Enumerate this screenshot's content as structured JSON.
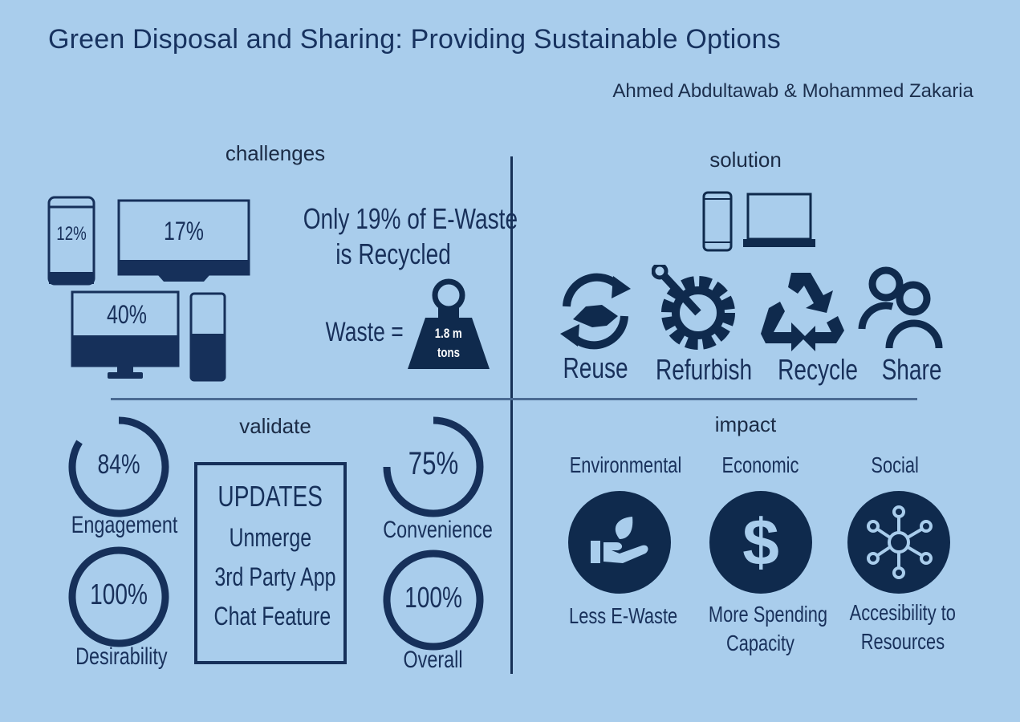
{
  "header": {
    "title": "Green Disposal and Sharing: Providing Sustainable Options",
    "authors": "Ahmed Abdultawab & Mohammed Zakaria"
  },
  "sections": {
    "challenges": "challenges",
    "solution": "solution",
    "validate": "validate",
    "impact": "impact"
  },
  "challenges": {
    "phone_pct": "12%",
    "tv_pct": "17%",
    "desktop_pct": "40%",
    "desktop_fill": 0.45,
    "tower_fill": 0.55,
    "phone_fill": 0.12,
    "tv_fill": 0.17,
    "recycled_line1": "Only 19% of E-Waste",
    "recycled_line2": "is Recycled",
    "waste_label": "Waste =",
    "weight_line1": "1.8 m",
    "weight_line2": "tons"
  },
  "solution": {
    "options": [
      {
        "label": "Reuse",
        "icon": "handshake-recycle-icon"
      },
      {
        "label": "Refurbish",
        "icon": "wrench-gear-icon"
      },
      {
        "label": "Recycle",
        "icon": "recycle-icon"
      },
      {
        "label": "Share",
        "icon": "users-icon"
      }
    ]
  },
  "validate": {
    "metrics": [
      {
        "value": "84%",
        "label": "Engagement",
        "fraction": 0.84
      },
      {
        "value": "100%",
        "label": "Desirability",
        "fraction": 1.0
      },
      {
        "value": "75%",
        "label": "Convenience",
        "fraction": 0.75
      },
      {
        "value": "100%",
        "label": "Overall",
        "fraction": 1.0
      }
    ],
    "updates": {
      "heading": "UPDATES",
      "items": [
        "Unmerge",
        "3rd Party App",
        "Chat Feature"
      ]
    }
  },
  "impact": {
    "items": [
      {
        "heading": "Environmental",
        "caption_line1": "Less E-Waste",
        "caption_line2": "",
        "icon": "hand-leaf-icon"
      },
      {
        "heading": "Economic",
        "caption_line1": "More Spending",
        "caption_line2": "Capacity",
        "icon": "dollar-icon"
      },
      {
        "heading": "Social",
        "caption_line1": "Accesibility to",
        "caption_line2": "Resources",
        "icon": "network-icon"
      }
    ]
  },
  "colors": {
    "background": "#a9cdec",
    "navy": "#16305a",
    "dark_navy": "#0f2a4d"
  }
}
